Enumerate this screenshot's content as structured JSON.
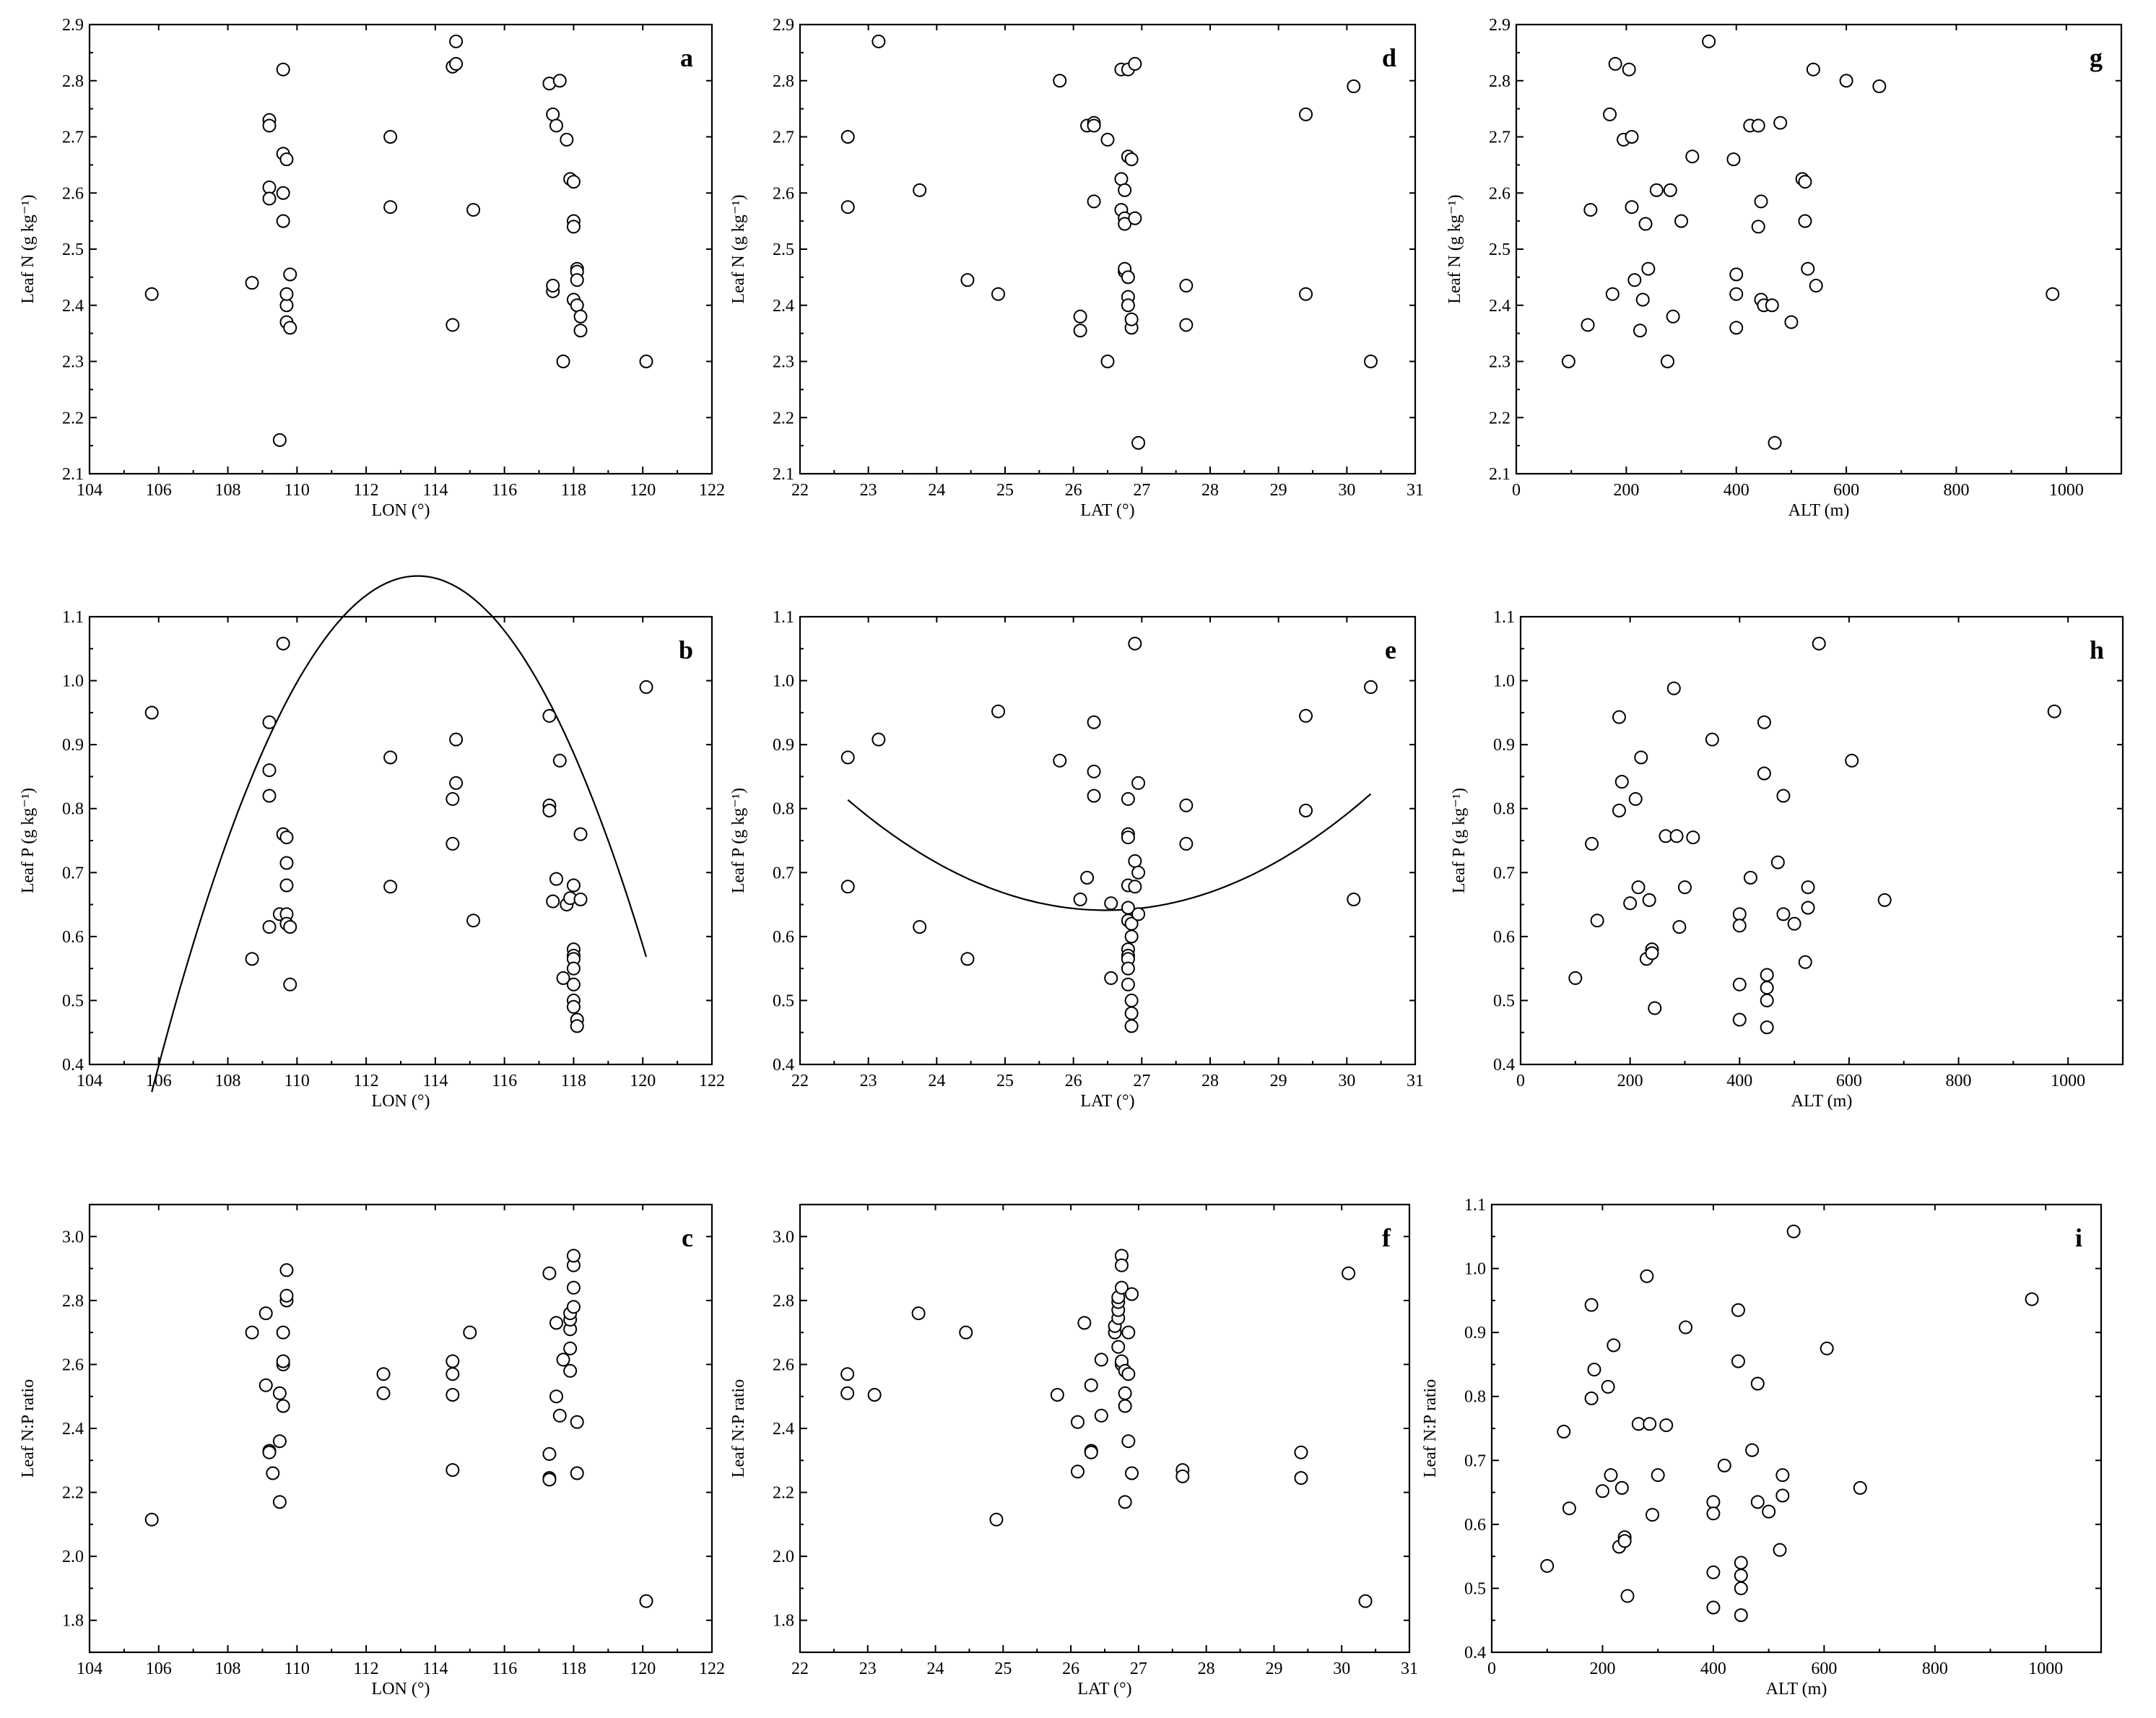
{
  "chart_data": [
    {
      "type": "scatter",
      "panel": "a",
      "xlabel": "LON (°)",
      "ylabel": "Leaf N (g kg⁻¹)",
      "xlim": [
        104,
        122
      ],
      "ylim": [
        2.1,
        2.9
      ],
      "xticks": [
        104,
        106,
        108,
        110,
        112,
        114,
        116,
        118,
        120,
        122
      ],
      "yticks": [
        2.1,
        2.2,
        2.3,
        2.4,
        2.5,
        2.6,
        2.7,
        2.8,
        2.9
      ],
      "x": [
        105.8,
        108.7,
        109.2,
        109.2,
        109.2,
        109.2,
        109.5,
        109.6,
        109.6,
        109.6,
        109.6,
        109.7,
        109.7,
        109.7,
        109.7,
        109.8,
        109.8,
        112.7,
        112.7,
        114.5,
        114.5,
        114.6,
        114.6,
        115.1,
        117.3,
        117.4,
        117.4,
        117.4,
        117.5,
        117.6,
        117.7,
        117.8,
        117.9,
        118.0,
        118.0,
        118.0,
        118.0,
        118.1,
        118.1,
        118.1,
        118.1,
        118.2,
        118.2,
        120.1
      ],
      "y": [
        2.42,
        2.44,
        2.73,
        2.72,
        2.61,
        2.59,
        2.16,
        2.82,
        2.67,
        2.6,
        2.55,
        2.37,
        2.4,
        2.66,
        2.42,
        2.455,
        2.36,
        2.7,
        2.575,
        2.365,
        2.825,
        2.83,
        2.87,
        2.57,
        2.795,
        2.425,
        2.435,
        2.74,
        2.72,
        2.8,
        2.3,
        2.695,
        2.625,
        2.62,
        2.55,
        2.54,
        2.41,
        2.465,
        2.46,
        2.445,
        2.4,
        2.38,
        2.355,
        2.3
      ],
      "fit": {
        "type": "quadratic",
        "x_range": [
          105.8,
          120.1
        ],
        "coefficients": [
          -198.18,
          3.5262,
          -0.015535
        ]
      }
    },
    {
      "type": "scatter",
      "panel": "b",
      "xlabel": "LON (°)",
      "ylabel": "Leaf P (g kg⁻¹)",
      "xlim": [
        104,
        122
      ],
      "ylim": [
        0.4,
        1.1
      ],
      "xticks": [
        104,
        106,
        108,
        110,
        112,
        114,
        116,
        118,
        120,
        122
      ],
      "yticks": [
        0.4,
        0.5,
        0.6,
        0.7,
        0.8,
        0.9,
        1.0,
        1.1
      ],
      "x": [
        105.8,
        108.7,
        109.2,
        109.2,
        109.2,
        109.2,
        109.5,
        109.6,
        109.6,
        109.7,
        109.7,
        109.7,
        109.7,
        109.7,
        109.8,
        109.8,
        112.7,
        112.7,
        114.5,
        114.5,
        114.6,
        114.6,
        115.1,
        117.3,
        117.3,
        117.3,
        117.4,
        117.5,
        117.6,
        117.7,
        117.8,
        117.9,
        118.0,
        118.0,
        118.0,
        118.0,
        118.0,
        118.0,
        118.0,
        118.0,
        118.1,
        118.1,
        118.2,
        118.2,
        120.1
      ],
      "y": [
        0.95,
        0.565,
        0.935,
        0.86,
        0.82,
        0.615,
        0.635,
        1.058,
        0.76,
        0.755,
        0.715,
        0.68,
        0.635,
        0.62,
        0.615,
        0.525,
        0.88,
        0.678,
        0.745,
        0.815,
        0.84,
        0.908,
        0.625,
        0.945,
        0.805,
        0.797,
        0.655,
        0.69,
        0.875,
        0.535,
        0.65,
        0.66,
        0.68,
        0.58,
        0.57,
        0.565,
        0.55,
        0.525,
        0.5,
        0.49,
        0.47,
        0.46,
        0.76,
        0.658,
        0.99
      ]
    },
    {
      "type": "scatter",
      "panel": "c",
      "xlabel": "LON (°)",
      "ylabel": "Leaf N:P ratio",
      "xlim": [
        104,
        122
      ],
      "ylim": [
        1.7,
        3.1
      ],
      "xticks": [
        104,
        106,
        108,
        110,
        112,
        114,
        116,
        118,
        120,
        122
      ],
      "yticks": [
        1.8,
        2.0,
        2.2,
        2.4,
        2.6,
        2.8,
        3.0
      ],
      "x": [
        105.8,
        108.7,
        109.1,
        109.1,
        109.2,
        109.2,
        109.3,
        109.5,
        109.5,
        109.5,
        109.6,
        109.6,
        109.6,
        109.6,
        109.7,
        109.7,
        109.7,
        112.5,
        112.5,
        114.5,
        114.5,
        114.5,
        114.5,
        115.0,
        117.3,
        117.3,
        117.3,
        117.3,
        117.5,
        117.5,
        117.6,
        117.7,
        117.9,
        117.9,
        117.9,
        117.9,
        117.9,
        118.0,
        118.0,
        118.0,
        118.0,
        118.1,
        118.1,
        120.1
      ],
      "y": [
        2.115,
        2.7,
        2.535,
        2.76,
        2.33,
        2.325,
        2.26,
        2.17,
        2.36,
        2.51,
        2.6,
        2.61,
        2.7,
        2.47,
        2.8,
        2.815,
        2.895,
        2.51,
        2.57,
        2.27,
        2.505,
        2.57,
        2.61,
        2.7,
        2.245,
        2.24,
        2.32,
        2.885,
        2.5,
        2.73,
        2.44,
        2.615,
        2.58,
        2.65,
        2.71,
        2.74,
        2.76,
        2.78,
        2.84,
        2.91,
        2.94,
        2.26,
        2.42,
        1.86
      ]
    },
    {
      "type": "scatter",
      "panel": "d",
      "xlabel": "LAT (°)",
      "ylabel": "Leaf N (g kg⁻¹)",
      "xlim": [
        22,
        31
      ],
      "ylim": [
        2.1,
        2.9
      ],
      "xticks": [
        22,
        23,
        24,
        25,
        26,
        27,
        28,
        29,
        30,
        31
      ],
      "yticks": [
        2.1,
        2.2,
        2.3,
        2.4,
        2.5,
        2.6,
        2.7,
        2.8,
        2.9
      ],
      "x": [
        22.7,
        22.7,
        23.15,
        23.75,
        24.45,
        24.9,
        25.8,
        26.1,
        26.1,
        26.2,
        26.3,
        26.3,
        26.3,
        26.5,
        26.5,
        26.7,
        26.7,
        26.7,
        26.75,
        26.75,
        26.75,
        26.75,
        26.75,
        26.8,
        26.8,
        26.8,
        26.8,
        26.8,
        26.85,
        26.85,
        26.85,
        26.9,
        26.9,
        26.95,
        27.65,
        27.65,
        29.4,
        29.4,
        30.1,
        30.35
      ],
      "y": [
        2.7,
        2.575,
        2.87,
        2.605,
        2.445,
        2.42,
        2.8,
        2.38,
        2.355,
        2.72,
        2.725,
        2.72,
        2.585,
        2.3,
        2.695,
        2.82,
        2.57,
        2.625,
        2.555,
        2.605,
        2.545,
        2.46,
        2.465,
        2.82,
        2.665,
        2.45,
        2.415,
        2.4,
        2.66,
        2.36,
        2.375,
        2.83,
        2.555,
        2.155,
        2.435,
        2.365,
        2.74,
        2.42,
        2.79,
        2.3
      ]
    },
    {
      "type": "scatter",
      "panel": "e",
      "xlabel": "LAT (°)",
      "ylabel": "Leaf P (g kg⁻¹)",
      "xlim": [
        22,
        31
      ],
      "ylim": [
        0.4,
        1.1
      ],
      "xticks": [
        22,
        23,
        24,
        25,
        26,
        27,
        28,
        29,
        30,
        31
      ],
      "yticks": [
        0.4,
        0.5,
        0.6,
        0.7,
        0.8,
        0.9,
        1.0,
        1.1
      ],
      "x": [
        22.7,
        22.7,
        23.15,
        23.75,
        24.45,
        24.9,
        25.8,
        26.1,
        26.2,
        26.3,
        26.3,
        26.3,
        26.55,
        26.55,
        26.8,
        26.8,
        26.8,
        26.8,
        26.8,
        26.8,
        26.8,
        26.8,
        26.8,
        26.8,
        26.8,
        26.85,
        26.85,
        26.85,
        26.85,
        26.85,
        26.9,
        26.9,
        26.9,
        26.95,
        26.95,
        26.95,
        27.65,
        27.65,
        29.4,
        29.4,
        30.1,
        30.35
      ],
      "y": [
        0.88,
        0.678,
        0.908,
        0.615,
        0.565,
        0.952,
        0.875,
        0.658,
        0.692,
        0.858,
        0.935,
        0.82,
        0.652,
        0.535,
        0.815,
        0.76,
        0.755,
        0.68,
        0.645,
        0.625,
        0.58,
        0.57,
        0.565,
        0.55,
        0.525,
        0.5,
        0.48,
        0.46,
        0.62,
        0.6,
        1.058,
        0.718,
        0.678,
        0.84,
        0.635,
        0.7,
        0.805,
        0.745,
        0.945,
        0.797,
        0.658,
        0.99
      ],
      "fit": {
        "type": "quadratic",
        "x_range": [
          22.7,
          30.35
        ],
        "coefficients": [
          9.1307,
          -0.64133,
          0.012112
        ]
      }
    },
    {
      "type": "scatter",
      "panel": "f",
      "xlabel": "LAT (°)",
      "ylabel": "Leaf N:P ratio",
      "xlim": [
        22,
        31
      ],
      "ylim": [
        1.7,
        3.1
      ],
      "xticks": [
        22,
        23,
        24,
        25,
        26,
        27,
        28,
        29,
        30,
        31
      ],
      "yticks": [
        1.8,
        2.0,
        2.2,
        2.4,
        2.6,
        2.8,
        3.0
      ],
      "x": [
        22.7,
        22.7,
        23.1,
        23.75,
        24.45,
        24.9,
        25.8,
        26.1,
        26.1,
        26.2,
        26.3,
        26.3,
        26.3,
        26.45,
        26.45,
        26.65,
        26.65,
        26.7,
        26.7,
        26.7,
        26.7,
        26.7,
        26.75,
        26.75,
        26.75,
        26.75,
        26.75,
        26.8,
        26.8,
        26.8,
        26.8,
        26.85,
        26.85,
        26.85,
        26.9,
        26.9,
        27.65,
        27.65,
        29.4,
        29.4,
        30.1,
        30.35
      ],
      "y": [
        2.57,
        2.51,
        2.505,
        2.76,
        2.7,
        2.115,
        2.505,
        2.42,
        2.265,
        2.73,
        2.535,
        2.33,
        2.325,
        2.44,
        2.615,
        2.7,
        2.72,
        2.655,
        2.745,
        2.77,
        2.795,
        2.81,
        2.94,
        2.91,
        2.84,
        2.6,
        2.61,
        2.58,
        2.47,
        2.51,
        2.17,
        2.36,
        2.7,
        2.57,
        2.26,
        2.82,
        2.27,
        2.25,
        2.325,
        2.245,
        2.885,
        1.86
      ]
    },
    {
      "type": "scatter",
      "panel": "g",
      "xlabel": "ALT (m)",
      "ylabel": "Leaf N (g kg⁻¹)",
      "xlim": [
        0,
        1100
      ],
      "ylim": [
        2.1,
        2.9
      ],
      "xticks": [
        0,
        200,
        400,
        600,
        800,
        1000
      ],
      "yticks": [
        2.1,
        2.2,
        2.3,
        2.4,
        2.5,
        2.6,
        2.7,
        2.8,
        2.9
      ],
      "x": [
        95,
        130,
        135,
        170,
        175,
        180,
        195,
        205,
        210,
        210,
        215,
        225,
        230,
        235,
        240,
        255,
        275,
        280,
        285,
        300,
        320,
        350,
        395,
        400,
        400,
        400,
        425,
        440,
        440,
        445,
        445,
        450,
        465,
        470,
        480,
        500,
        520,
        525,
        525,
        530,
        540,
        545,
        600,
        660,
        975
      ],
      "y": [
        2.3,
        2.365,
        2.57,
        2.74,
        2.42,
        2.83,
        2.695,
        2.82,
        2.575,
        2.7,
        2.445,
        2.355,
        2.41,
        2.545,
        2.465,
        2.605,
        2.3,
        2.605,
        2.38,
        2.55,
        2.665,
        2.87,
        2.66,
        2.455,
        2.42,
        2.36,
        2.72,
        2.72,
        2.54,
        2.585,
        2.41,
        2.4,
        2.4,
        2.155,
        2.725,
        2.37,
        2.625,
        2.62,
        2.55,
        2.465,
        2.82,
        2.435,
        2.8,
        2.79,
        2.42
      ]
    },
    {
      "type": "scatter",
      "panel": "h",
      "xlabel": "ALT (m)",
      "ylabel": "Leaf P (g kg⁻¹)",
      "xlim": [
        0,
        1100
      ],
      "ylim": [
        0.4,
        1.1
      ],
      "xticks": [
        0,
        200,
        400,
        600,
        800,
        1000
      ],
      "yticks": [
        0.4,
        0.5,
        0.6,
        0.7,
        0.8,
        0.9,
        1.0,
        1.1
      ],
      "x": [
        100,
        130,
        140,
        180,
        180,
        185,
        200,
        210,
        215,
        220,
        230,
        235,
        240,
        240,
        245,
        265,
        280,
        285,
        290,
        300,
        315,
        350,
        400,
        400,
        400,
        400,
        420,
        445,
        445,
        450,
        450,
        450,
        450,
        470,
        480,
        480,
        500,
        520,
        525,
        525,
        545,
        605,
        665,
        975
      ],
      "y": [
        0.535,
        0.745,
        0.625,
        0.943,
        0.797,
        0.842,
        0.652,
        0.815,
        0.677,
        0.88,
        0.565,
        0.657,
        0.58,
        0.574,
        0.488,
        0.757,
        0.988,
        0.757,
        0.615,
        0.677,
        0.755,
        0.908,
        0.525,
        0.47,
        0.635,
        0.617,
        0.692,
        0.935,
        0.855,
        0.54,
        0.52,
        0.5,
        0.458,
        0.716,
        0.635,
        0.82,
        0.62,
        0.56,
        0.645,
        0.677,
        1.058,
        0.875,
        0.657,
        0.952
      ]
    },
    {
      "type": "scatter",
      "panel": "i",
      "xlabel": "ALT (m)",
      "ylabel": "Leaf N:P ratio",
      "xlim": [
        0,
        1100
      ],
      "ylim": [
        0.4,
        1.1
      ],
      "xticks": [
        0,
        200,
        400,
        600,
        800,
        1000
      ],
      "yticks": [
        0.4,
        0.5,
        0.6,
        0.7,
        0.8,
        0.9,
        1.0,
        1.1
      ],
      "x": [
        100,
        130,
        140,
        180,
        180,
        185,
        200,
        210,
        215,
        220,
        230,
        235,
        240,
        240,
        245,
        265,
        280,
        285,
        290,
        300,
        315,
        350,
        400,
        400,
        400,
        400,
        420,
        445,
        445,
        450,
        450,
        450,
        450,
        470,
        480,
        480,
        500,
        520,
        525,
        525,
        545,
        605,
        665,
        975
      ],
      "y": [
        0.535,
        0.745,
        0.625,
        0.943,
        0.797,
        0.842,
        0.652,
        0.815,
        0.677,
        0.88,
        0.565,
        0.657,
        0.58,
        0.574,
        0.488,
        0.757,
        0.988,
        0.757,
        0.615,
        0.677,
        0.755,
        0.908,
        0.525,
        0.47,
        0.635,
        0.617,
        0.692,
        0.935,
        0.855,
        0.54,
        0.52,
        0.5,
        0.458,
        0.716,
        0.635,
        0.82,
        0.62,
        0.56,
        0.645,
        0.677,
        1.058,
        0.875,
        0.657,
        0.952
      ]
    }
  ]
}
